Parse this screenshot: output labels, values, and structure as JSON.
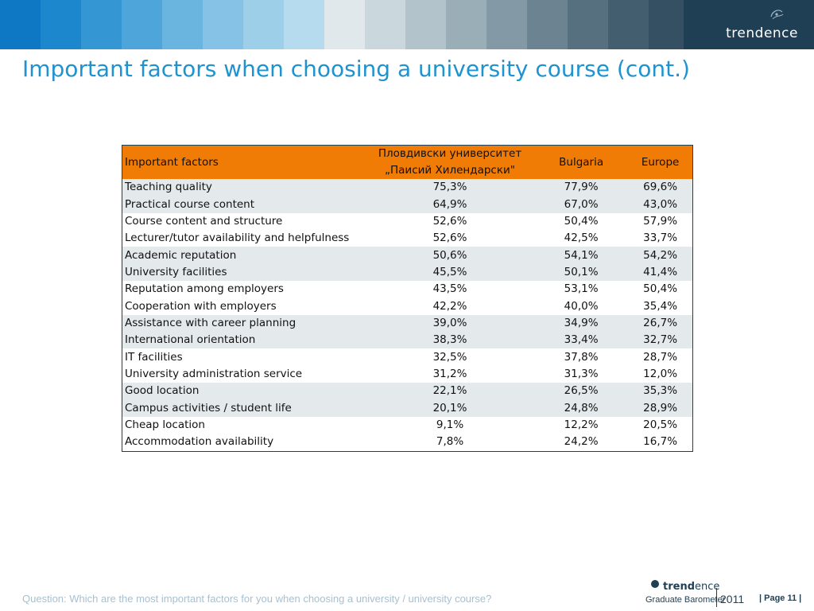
{
  "header": {
    "brand": "trendence",
    "stripe_colors": [
      "#0e78c4",
      "#1d87cd",
      "#3497d3",
      "#4da5da",
      "#6ab5e0",
      "#86c2e5",
      "#9ecfe9",
      "#b6dbef",
      "#e1e8ec",
      "#cad7dd",
      "#b3c3cb",
      "#9aaeb8",
      "#8399a5",
      "#6c8492",
      "#577080",
      "#435e6e",
      "#345062",
      "#2a465a"
    ]
  },
  "title": "Important factors when choosing a university course (cont.)",
  "table": {
    "header_color": "#f07b05",
    "columns": [
      "Important factors",
      "Пловдивски университет „Паисий Хилендарски\"",
      "Bulgaria",
      "Europe"
    ],
    "rows": [
      [
        "Teaching quality",
        "75,3%",
        "77,9%",
        "69,6%"
      ],
      [
        "Practical course content",
        "64,9%",
        "67,0%",
        "43,0%"
      ],
      [
        "Course content and structure",
        "52,6%",
        "50,4%",
        "57,9%"
      ],
      [
        "Lecturer/tutor availability and helpfulness",
        "52,6%",
        "42,5%",
        "33,7%"
      ],
      [
        "Academic reputation",
        "50,6%",
        "54,1%",
        "54,2%"
      ],
      [
        "University facilities",
        "45,5%",
        "50,1%",
        "41,4%"
      ],
      [
        "Reputation among employers",
        "43,5%",
        "53,1%",
        "50,4%"
      ],
      [
        "Cooperation with employers",
        "42,2%",
        "40,0%",
        "35,4%"
      ],
      [
        "Assistance with career planning",
        "39,0%",
        "34,9%",
        "26,7%"
      ],
      [
        "International orientation",
        "38,3%",
        "33,4%",
        "32,7%"
      ],
      [
        "IT facilities",
        "32,5%",
        "37,8%",
        "28,7%"
      ],
      [
        "University administration service",
        "31,2%",
        "31,3%",
        "12,0%"
      ],
      [
        "Good location",
        "22,1%",
        "26,5%",
        "35,3%"
      ],
      [
        "Campus activities / student life",
        "20,1%",
        "24,8%",
        "28,9%"
      ],
      [
        "Cheap location",
        "9,1%",
        "12,2%",
        "20,5%"
      ],
      [
        "Accommodation availability",
        "7,8%",
        "24,2%",
        "16,7%"
      ]
    ]
  },
  "footer": {
    "question": "Question: Which are the most important factors for you when choosing a university / university course?",
    "logo_word_bold": "trend",
    "logo_word_light": "ence",
    "logo_subtitle": "Graduate Barometer",
    "logo_year": "2011",
    "page_label": "| Page 11 |"
  }
}
